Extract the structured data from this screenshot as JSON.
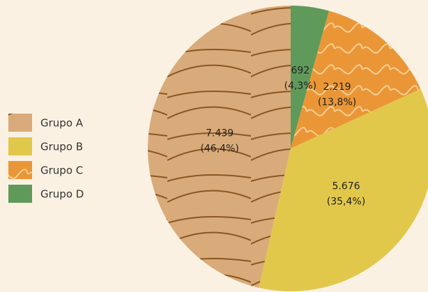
{
  "chart_data": {
    "type": "pie",
    "categories": [
      "Grupo A",
      "Grupo B",
      "Grupo C",
      "Grupo D"
    ],
    "values": [
      7439,
      5676,
      2219,
      692
    ],
    "value_labels": [
      "7.439",
      "5.676",
      "2.219",
      "692"
    ],
    "percent_labels": [
      "(46,4%)",
      "(35,4%)",
      "(13,8%)",
      "(4,3%)"
    ],
    "colors": [
      "#d9ab7a",
      "#e1c84b",
      "#eb9636",
      "#5f9a5a"
    ],
    "patterns": [
      "wood",
      null,
      "waves",
      null
    ],
    "startangle": 90,
    "counterclock": true,
    "legend": "left"
  }
}
